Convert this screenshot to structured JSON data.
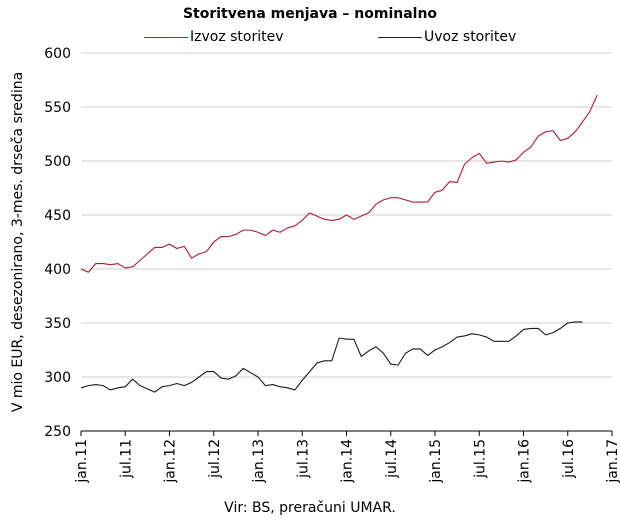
{
  "chart_data": {
    "type": "line",
    "title": "Storitvena menjava – nominalno",
    "ylabel": "V mio EUR, desezonirano, 3-mes. drseča sredina",
    "xlabel": "",
    "source": "Vir: BS, preračuni UMAR.",
    "ylim": [
      250,
      600
    ],
    "yticks": [
      250,
      300,
      350,
      400,
      450,
      500,
      550,
      600
    ],
    "xticks": [
      "jan.11",
      "jul.11",
      "jan.12",
      "jul.12",
      "jan.13",
      "jul.13",
      "jan.14",
      "jul.14",
      "jan.15",
      "jul.15",
      "jan.16",
      "jul.16",
      "jan.17"
    ],
    "x_start": "jan.11",
    "legend_position": "top",
    "grid": "horizontal",
    "series": [
      {
        "name": "Izvoz storitev",
        "color": "#b5172f",
        "values": [
          400,
          397,
          405,
          405,
          404,
          405,
          401,
          402,
          408,
          414,
          420,
          420,
          423,
          419,
          421,
          410,
          414,
          416,
          425,
          430,
          430,
          432,
          436,
          436,
          434,
          431,
          436,
          434,
          438,
          440,
          445,
          452,
          449,
          446,
          445,
          446,
          450,
          446,
          449,
          452,
          460,
          464,
          466,
          466,
          464,
          462,
          462,
          462,
          471,
          473,
          481,
          480,
          497,
          503,
          507,
          498,
          499,
          500,
          499,
          501,
          508,
          513,
          523,
          527,
          528,
          519,
          521,
          527,
          536,
          546,
          561
        ]
      },
      {
        "name": "Uvoz storitev",
        "color": "#1a1a1a",
        "values": [
          290,
          292,
          293,
          292,
          288,
          290,
          291,
          298,
          292,
          289,
          286,
          291,
          292,
          294,
          292,
          295,
          300,
          305,
          305,
          299,
          298,
          301,
          308,
          304,
          300,
          292,
          293,
          291,
          290,
          288,
          297,
          305,
          313,
          315,
          315,
          336,
          335,
          335,
          319,
          324,
          328,
          322,
          312,
          311,
          322,
          326,
          326,
          320,
          325,
          328,
          332,
          337,
          338,
          340,
          339,
          337,
          333,
          333,
          333,
          338,
          344,
          345,
          345,
          339,
          341,
          345,
          350,
          351,
          351
        ]
      }
    ]
  }
}
